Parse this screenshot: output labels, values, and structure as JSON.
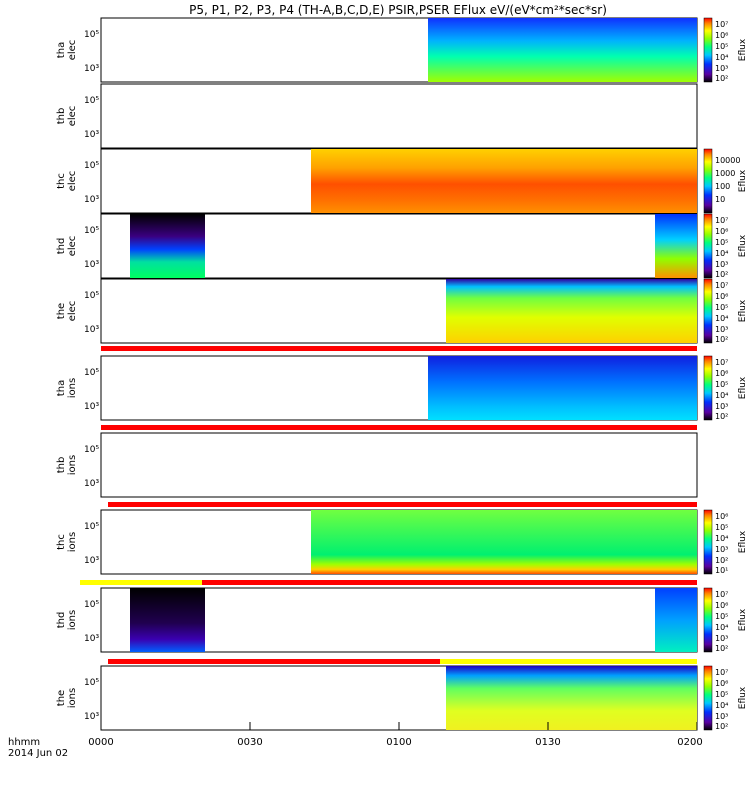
{
  "title": "P5, P1, P2, P3, P4 (TH-A,B,C,D,E) PSIR,PSER EFlux eV/(eV*cm²*sec*sr)",
  "time_axis": {
    "label_line1": "hhmm",
    "label_line2": "2014 Jun 02",
    "ticks": [
      "0000",
      "0030",
      "0100",
      "0130",
      "0200"
    ]
  },
  "colorbar_label": "Eflux",
  "colors": {
    "flag_red": "#ff0000",
    "flag_yellow": "#ffff00",
    "frame": "#000000"
  },
  "chart_data": [
    {
      "type": "heatmap",
      "probe": "tha",
      "species": "elec",
      "ylabel": [
        "tha",
        "elec"
      ],
      "yticks": [
        "10⁵",
        "10³"
      ],
      "xlim": [
        "00:00",
        "02:00"
      ],
      "data_start": "01:05",
      "colorbar_ticks": [
        "10⁷",
        "10⁶",
        "10⁵",
        "10⁴",
        "10³",
        "10²"
      ]
    },
    {
      "type": "heatmap",
      "probe": "thb",
      "species": "elec",
      "ylabel": [
        "thb",
        "elec"
      ],
      "yticks": [
        "10⁵",
        "10³"
      ],
      "xlim": [
        "00:00",
        "02:00"
      ],
      "data_start": null,
      "colorbar_ticks": []
    },
    {
      "type": "heatmap",
      "probe": "thc",
      "species": "elec",
      "ylabel": [
        "thc",
        "elec"
      ],
      "yticks": [
        "10⁵",
        "10³"
      ],
      "xlim": [
        "00:00",
        "02:00"
      ],
      "data_start": "00:42",
      "colorbar_ticks": [
        "10000",
        "1000",
        "100",
        "10"
      ]
    },
    {
      "type": "heatmap",
      "probe": "thd",
      "species": "elec",
      "ylabel": [
        "thd",
        "elec"
      ],
      "yticks": [
        "10⁵",
        "10³"
      ],
      "xlim": [
        "00:00",
        "02:00"
      ],
      "data_intervals": [
        [
          "00:06",
          "00:21"
        ],
        [
          "01:51",
          "02:00"
        ]
      ],
      "colorbar_ticks": [
        "10⁷",
        "10⁶",
        "10⁵",
        "10⁴",
        "10³",
        "10²"
      ]
    },
    {
      "type": "heatmap",
      "probe": "the",
      "species": "elec",
      "ylabel": [
        "the",
        "elec"
      ],
      "yticks": [
        "10⁵",
        "10³"
      ],
      "xlim": [
        "00:00",
        "02:00"
      ],
      "data_start": "01:09",
      "colorbar_ticks": [
        "10⁷",
        "10⁶",
        "10⁵",
        "10⁴",
        "10³",
        "10²"
      ]
    },
    {
      "type": "heatmap",
      "probe": "tha",
      "species": "ions",
      "ylabel": [
        "tha",
        "ions"
      ],
      "yticks": [
        "10⁵",
        "10³"
      ],
      "xlim": [
        "00:00",
        "02:00"
      ],
      "data_start": "01:05",
      "colorbar_ticks": [
        "10⁷",
        "10⁶",
        "10⁵",
        "10⁴",
        "10³",
        "10²"
      ]
    },
    {
      "type": "heatmap",
      "probe": "thb",
      "species": "ions",
      "ylabel": [
        "thb",
        "ions"
      ],
      "yticks": [
        "10⁵",
        "10³"
      ],
      "xlim": [
        "00:00",
        "02:00"
      ],
      "data_start": null,
      "colorbar_ticks": []
    },
    {
      "type": "heatmap",
      "probe": "thc",
      "species": "ions",
      "ylabel": [
        "thc",
        "ions"
      ],
      "yticks": [
        "10⁵",
        "10³"
      ],
      "xlim": [
        "00:00",
        "02:00"
      ],
      "data_start": "00:42",
      "colorbar_ticks": [
        "10⁶",
        "10⁵",
        "10⁴",
        "10³",
        "10²",
        "10¹"
      ]
    },
    {
      "type": "heatmap",
      "probe": "thd",
      "species": "ions",
      "ylabel": [
        "thd",
        "ions"
      ],
      "yticks": [
        "10⁵",
        "10³"
      ],
      "xlim": [
        "00:00",
        "02:00"
      ],
      "data_intervals": [
        [
          "00:06",
          "00:21"
        ],
        [
          "01:51",
          "02:00"
        ]
      ],
      "colorbar_ticks": [
        "10⁷",
        "10⁶",
        "10⁵",
        "10⁴",
        "10³",
        "10²"
      ]
    },
    {
      "type": "heatmap",
      "probe": "the",
      "species": "ions",
      "ylabel": [
        "the",
        "ions"
      ],
      "yticks": [
        "10⁵",
        "10³"
      ],
      "xlim": [
        "00:00",
        "02:00"
      ],
      "data_start": "01:09",
      "colorbar_ticks": [
        "10⁷",
        "10⁶",
        "10⁵",
        "10⁴",
        "10³",
        "10²"
      ]
    }
  ]
}
